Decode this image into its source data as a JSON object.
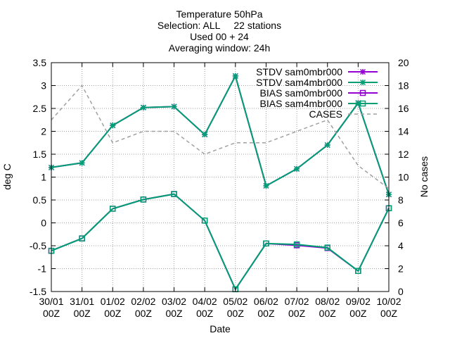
{
  "chart_data": {
    "type": "line",
    "title_lines": [
      "Temperature 50hPa",
      "Selection: ALL     22 stations",
      "Used 00 + 24",
      "Averaging window: 24h"
    ],
    "xlabel": "Date",
    "ylabel": "deg C",
    "y2label": "No cases",
    "categories": [
      [
        "30/01",
        "00Z"
      ],
      [
        "31/01",
        "00Z"
      ],
      [
        "01/02",
        "00Z"
      ],
      [
        "02/02",
        "00Z"
      ],
      [
        "03/02",
        "00Z"
      ],
      [
        "04/02",
        "00Z"
      ],
      [
        "05/02",
        "00Z"
      ],
      [
        "06/02",
        "00Z"
      ],
      [
        "07/02",
        "00Z"
      ],
      [
        "08/02",
        "00Z"
      ],
      [
        "09/02",
        "00Z"
      ],
      [
        "10/02",
        "00Z"
      ]
    ],
    "ylim": [
      -1.5,
      3.5
    ],
    "y2lim": [
      0,
      20
    ],
    "yticks": [
      "-1.5",
      "-1",
      "-0.5",
      "0",
      "0.5",
      "1",
      "1.5",
      "2",
      "2.5",
      "3",
      "3.5"
    ],
    "y2ticks": [
      "0",
      "2",
      "4",
      "6",
      "8",
      "10",
      "12",
      "14",
      "16",
      "18",
      "20"
    ],
    "grid": true,
    "legend_position": "top-right",
    "series": [
      {
        "name": "STDV sam0mbr000",
        "axis": "y",
        "color": "#9400d3",
        "dash": "solid",
        "marker": "star",
        "values": [
          1.21,
          1.31,
          2.13,
          2.52,
          2.54,
          1.93,
          3.21,
          0.81,
          1.18,
          1.7,
          2.62,
          0.62
        ]
      },
      {
        "name": "STDV sam4mbr000",
        "axis": "y",
        "color": "#009e73",
        "dash": "solid",
        "marker": "star",
        "values": [
          1.21,
          1.31,
          2.13,
          2.52,
          2.54,
          1.93,
          3.21,
          0.81,
          1.18,
          1.7,
          2.62,
          0.62
        ]
      },
      {
        "name": "BIAS sam0mbr000",
        "axis": "y",
        "color": "#9400d3",
        "dash": "solid",
        "marker": "square",
        "values": [
          -0.61,
          -0.34,
          0.31,
          0.51,
          0.63,
          0.05,
          -1.45,
          -0.45,
          -0.49,
          -0.55,
          -1.05,
          0.32
        ]
      },
      {
        "name": "BIAS sam4mbr000",
        "axis": "y",
        "color": "#009e73",
        "dash": "solid",
        "marker": "square",
        "values": [
          -0.61,
          -0.34,
          0.31,
          0.51,
          0.63,
          0.05,
          -1.45,
          -0.45,
          -0.47,
          -0.54,
          -1.05,
          0.32
        ]
      },
      {
        "name": "CASES",
        "axis": "y2",
        "color": "#a0a0a0",
        "dash": "dashed",
        "marker": "none",
        "values": [
          15,
          18,
          13,
          14,
          14,
          12,
          13,
          13,
          14,
          15,
          11,
          9
        ]
      }
    ]
  }
}
